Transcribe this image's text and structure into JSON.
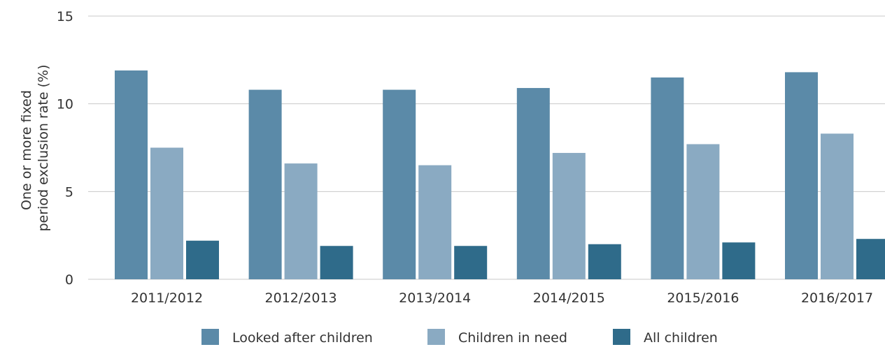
{
  "chart_data": {
    "type": "bar",
    "title": "",
    "xlabel": "",
    "ylabel_lines": [
      "One or more fixed",
      "period exclusion rate (%)"
    ],
    "categories": [
      "2011/2012",
      "2012/2013",
      "2013/2014",
      "2014/2015",
      "2015/2016",
      "2016/2017"
    ],
    "series": [
      {
        "name": "Looked after children",
        "color": "#5b8aa8",
        "values": [
          11.9,
          10.8,
          10.8,
          10.9,
          11.5,
          11.8
        ]
      },
      {
        "name": "Children in need",
        "color": "#8aaac2",
        "values": [
          7.5,
          6.6,
          6.5,
          7.2,
          7.7,
          8.3
        ]
      },
      {
        "name": "All children",
        "color": "#2f6b8a",
        "values": [
          2.2,
          1.9,
          1.9,
          2.0,
          2.1,
          2.3
        ]
      }
    ],
    "ylim": [
      0,
      15
    ],
    "yticks": [
      "0",
      "5",
      "10",
      "15"
    ],
    "ytick_values": [
      0,
      5,
      10,
      15
    ],
    "grid": true,
    "legend_position": "bottom"
  }
}
